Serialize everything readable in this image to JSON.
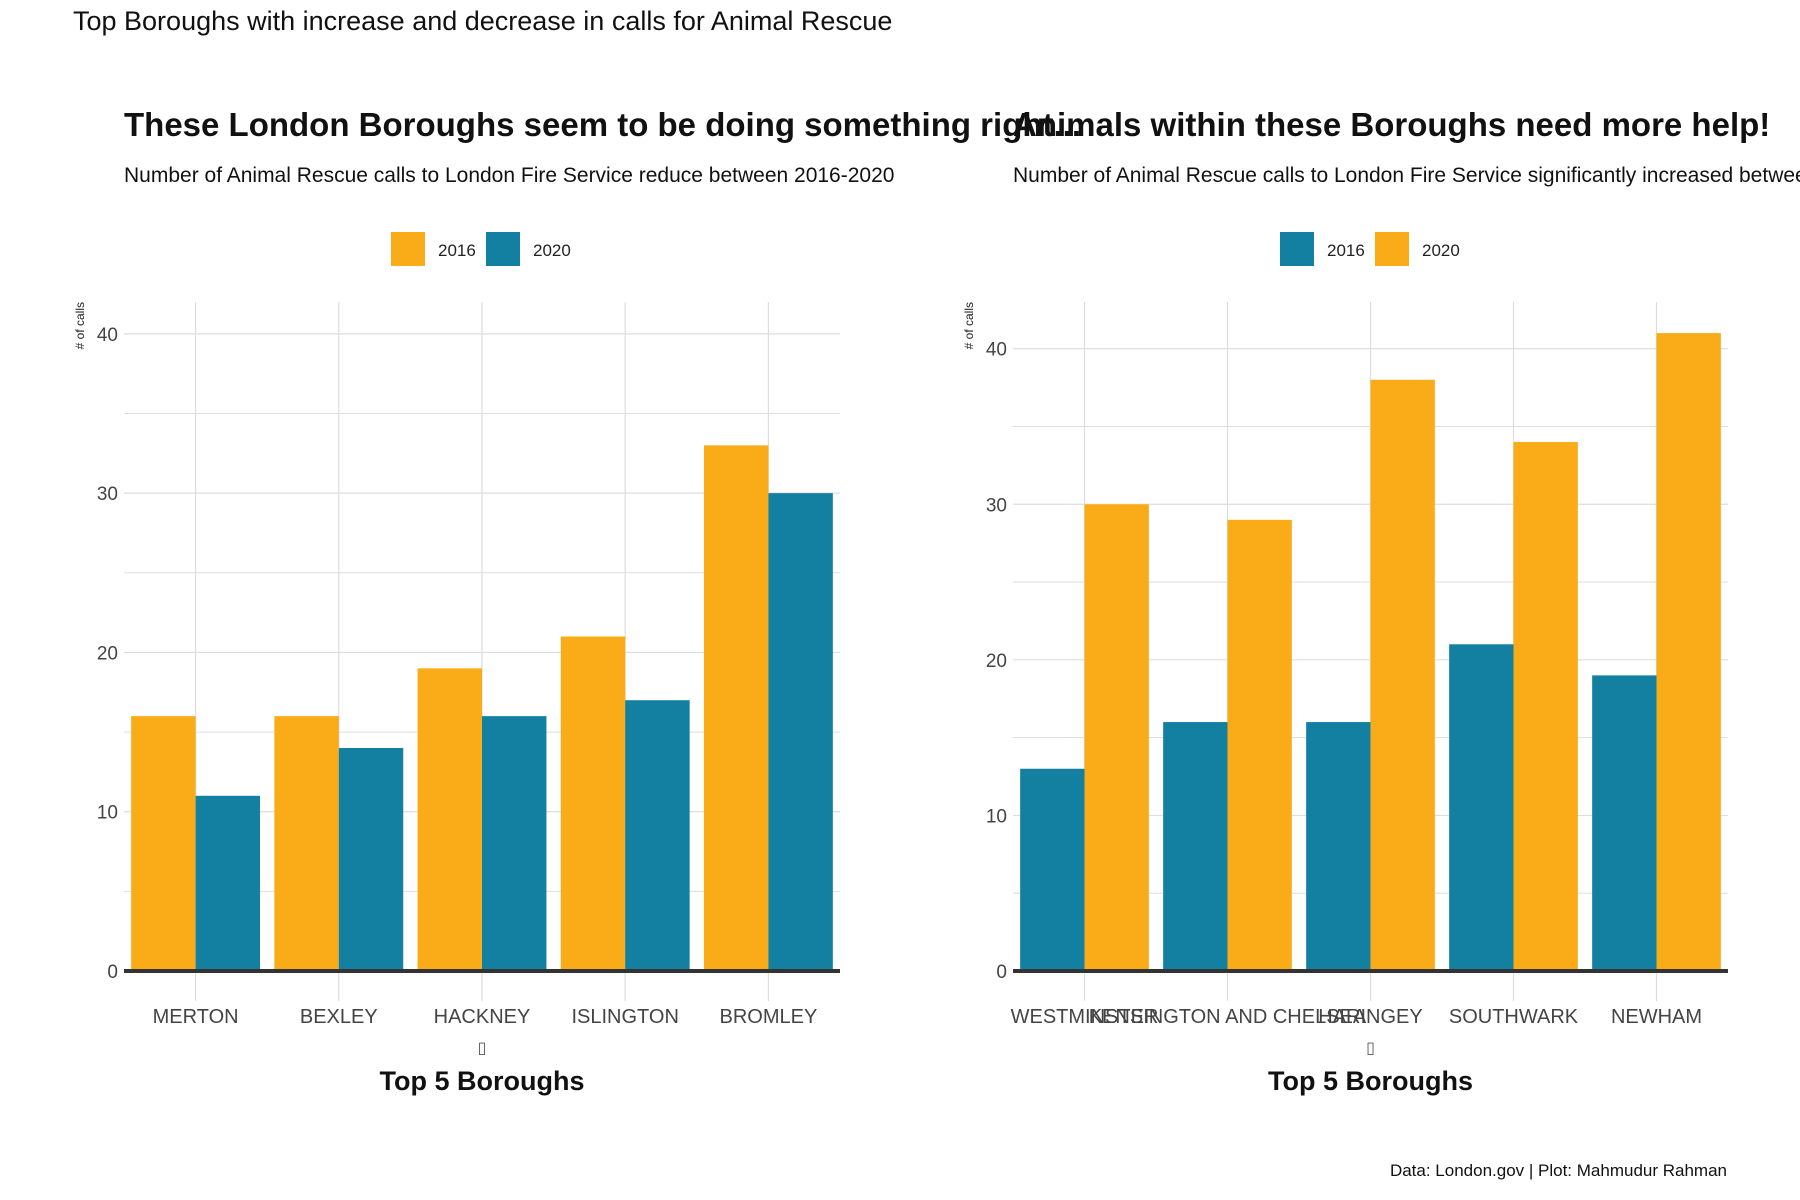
{
  "page_title": "Top Boroughs with increase and decrease in calls for Animal Rescue",
  "caption": "Data: London.gov | Plot: Mahmudur Rahman",
  "colors": {
    "orange": "#FAAB18",
    "teal": "#1380A1",
    "grid": "#DDDDDD",
    "axis": "#333333"
  },
  "chart_data": [
    {
      "type": "bar",
      "title": "These London Boroughs seem to be doing something right...",
      "subtitle": "Number of Animal Rescue calls to London Fire Service reduce between 2016-2020",
      "xlabel": "Top 5 Boroughs",
      "x_glyph": "▯",
      "ylabel": "# of calls",
      "ylim": [
        0,
        42
      ],
      "yticks": [
        0,
        10,
        20,
        30,
        40
      ],
      "grid": true,
      "legend_position": "top",
      "categories": [
        "MERTON",
        "BEXLEY",
        "HACKNEY",
        "ISLINGTON",
        "BROMLEY"
      ],
      "series": [
        {
          "name": "2016",
          "color": "#FAAB18",
          "values": [
            16,
            16,
            19,
            21,
            33
          ]
        },
        {
          "name": "2020",
          "color": "#1380A1",
          "values": [
            11,
            14,
            16,
            17,
            30
          ]
        }
      ]
    },
    {
      "type": "bar",
      "title": "Animals within these Boroughs need more help!",
      "subtitle": "Number of Animal Rescue calls to London Fire Service significantly increased between",
      "xlabel": "Top 5 Boroughs",
      "x_glyph": "▯",
      "ylabel": "# of calls",
      "ylim": [
        0,
        43
      ],
      "yticks": [
        0,
        10,
        20,
        30,
        40
      ],
      "grid": true,
      "legend_position": "top",
      "categories": [
        "WESTMINSTER",
        "KENSINGTON AND CHELSEA",
        "HARINGEY",
        "SOUTHWARK",
        "NEWHAM"
      ],
      "series": [
        {
          "name": "2016",
          "color": "#1380A1",
          "values": [
            13,
            16,
            16,
            21,
            19
          ]
        },
        {
          "name": "2020",
          "color": "#FAAB18",
          "values": [
            30,
            29,
            38,
            34,
            41
          ]
        }
      ]
    }
  ]
}
